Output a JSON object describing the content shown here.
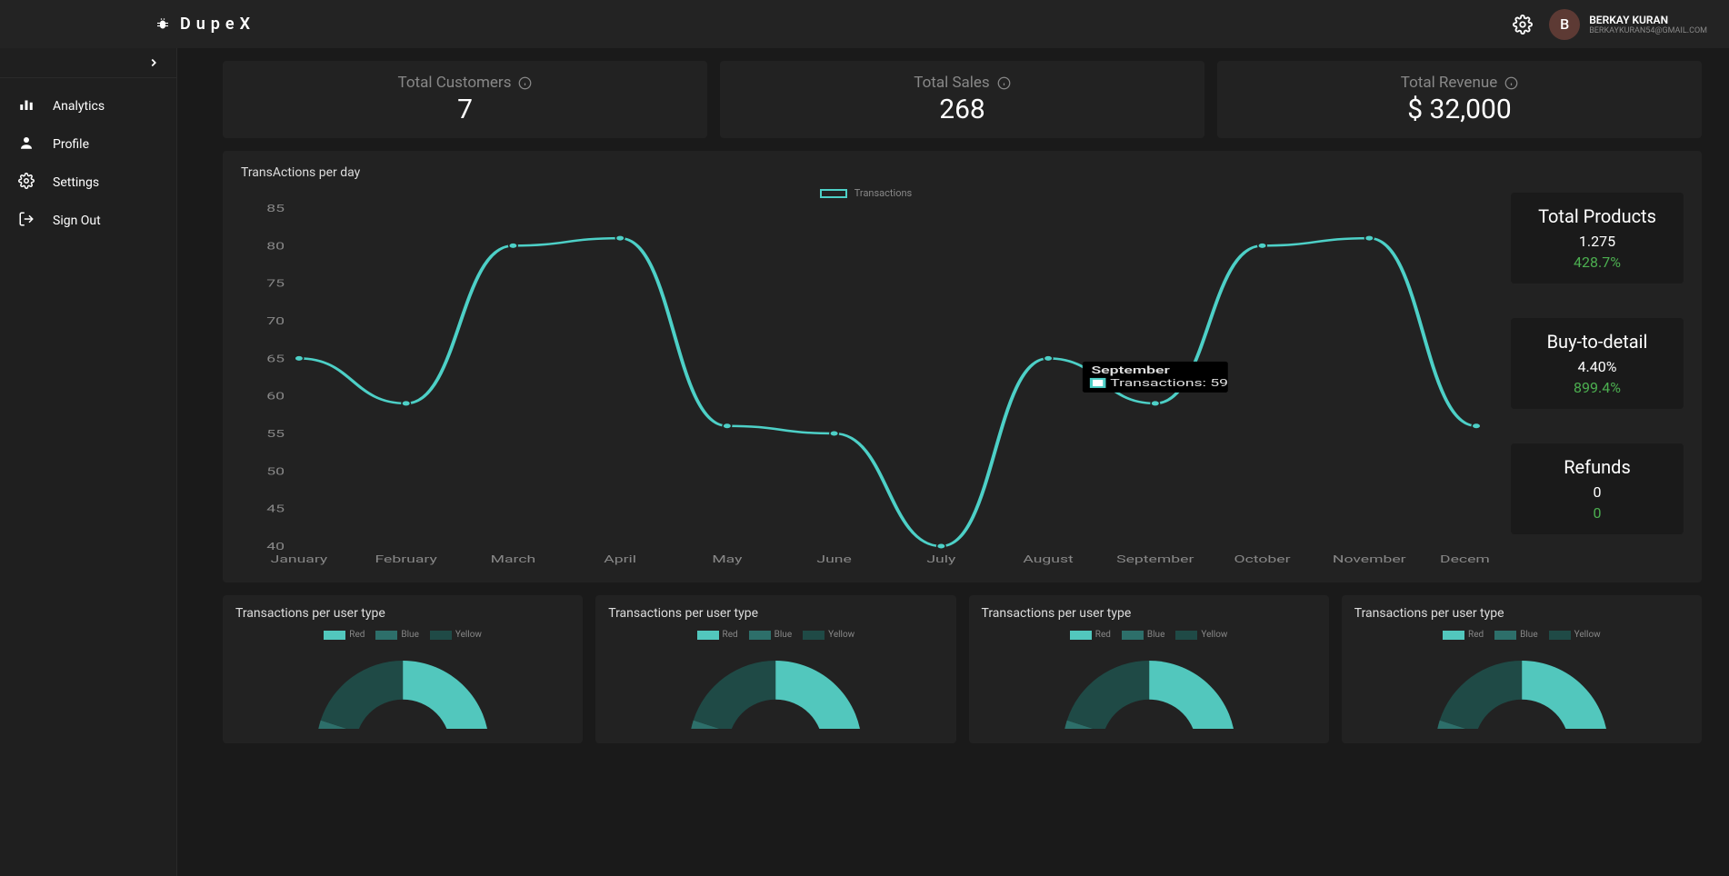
{
  "header": {
    "brand": "DupeX",
    "user_initial": "B",
    "user_name": "BERKAY KURAN",
    "user_email": "BERKAYKURAN54@GMAIL.COM"
  },
  "sidebar": {
    "items": [
      {
        "label": "Analytics",
        "icon": "bar-chart-icon"
      },
      {
        "label": "Profile",
        "icon": "user-icon"
      },
      {
        "label": "Settings",
        "icon": "gear-icon"
      },
      {
        "label": "Sign Out",
        "icon": "signout-icon"
      }
    ]
  },
  "kpis": [
    {
      "label": "Total Customers",
      "value": "7"
    },
    {
      "label": "Total Sales",
      "value": "268"
    },
    {
      "label": "Total Revenue",
      "value": "$ 32,000"
    }
  ],
  "line_chart": {
    "title": "TransActions per day",
    "legend_label": "Transactions",
    "type": "line",
    "line_color": "#4dd0c7",
    "background_color": "#222222",
    "tick_color": "#888888",
    "ylim": [
      40,
      85
    ],
    "ytick_step": 5,
    "x_labels": [
      "January",
      "February",
      "March",
      "April",
      "May",
      "June",
      "July",
      "August",
      "September",
      "October",
      "November",
      "December"
    ],
    "values": [
      65,
      59,
      80,
      81,
      56,
      55,
      40,
      65,
      59,
      80,
      81,
      56
    ],
    "tooltip": {
      "index": 8,
      "title": "September",
      "series": "Transactions",
      "value": 59
    }
  },
  "stats": [
    {
      "title": "Total Products",
      "v1": "1.275",
      "v2": "428.7%",
      "v2_class": "green"
    },
    {
      "title": "Buy-to-detail",
      "v1": "4.40%",
      "v2": "899.4%",
      "v2_class": "green"
    },
    {
      "title": "Refunds",
      "v1": "0",
      "v2": "0",
      "v2_class": "green"
    }
  ],
  "donuts": {
    "title": "Transactions per user type",
    "type": "doughnut",
    "legend": [
      "Red",
      "Blue",
      "Yellow"
    ],
    "colors": [
      "#52c7bd",
      "#2d6f6a",
      "#1f4a46"
    ],
    "background_color": "#222222",
    "values": [
      50,
      30,
      20
    ],
    "inner_radius_ratio": 0.55,
    "count": 4
  },
  "theme": {
    "bg": "#1a1a1a",
    "card": "#222222",
    "accent": "#4dd0c7",
    "text_muted": "#888888",
    "text": "#ffffff",
    "green": "#4caf50"
  }
}
